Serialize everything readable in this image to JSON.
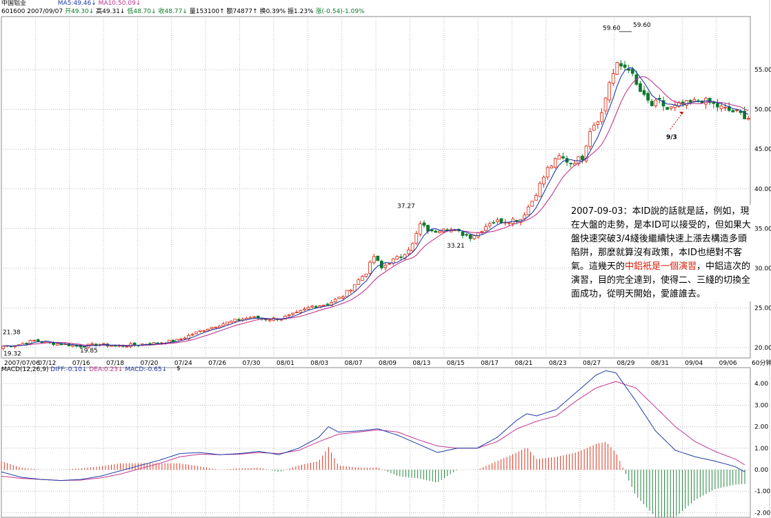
{
  "header": {
    "name": "中国铝业",
    "code": "601600",
    "date": "2007/09/07",
    "ma5": "MA5:49.46↓",
    "ma10": "MA10:50.09↓",
    "open": "开49.30↓",
    "high": "高49.31↓",
    "low": "低48.70↓",
    "close": "收48.77↓",
    "volume": "量153100↑",
    "amount": "额74877↑",
    "turnover": "换0.39%",
    "amplitude": "振1.23%",
    "change": "涨(-0.54)-1.09%"
  },
  "annotation": {
    "p1": "2007-09-03：本ID說的話就是話，例如，現在大盤的走勢，是本ID可以接受的，但如果大盤快速突破3/4綫後繼續快速上漲去構造多頭陷阱，那麼就算沒有政策，本ID也絕對不客氣。這幾天的",
    "hl": "中鋁衹是一個演習",
    "p2": "，中鋁這次的演習，目的完全達到，使得二、三綫的切換全面成功，從明天開始，愛誰誰去。"
  },
  "macd_header": {
    "label": "MACD(12,26,9)",
    "diff": "DIFF:-0.10↓",
    "dea": "DEA:0.23↓",
    "macd": "MACD:-0.65↓"
  },
  "price_labels": {
    "low_start": "19.32",
    "high_start": "21.38",
    "low_0716": "19.85",
    "high_0808": "37.27",
    "low_0815": "33.21",
    "peak_label1": "59.60",
    "peak_label2": "59.60",
    "arrow_label": "9/3",
    "dollar": "$",
    "period": "60分钟"
  },
  "colors": {
    "up": "#d81e06",
    "down": "#0a7a2a",
    "ma5": "#1f3aa6",
    "ma10": "#c0368f",
    "grid": "#b8b8b8"
  },
  "chart_data": [
    {
      "type": "candlestick",
      "title": "",
      "x_tick_labels": [
        "2007/07/06",
        "07/12",
        "07/16",
        "07/18",
        "07/20",
        "07/24",
        "07/26",
        "07/30",
        "08/01",
        "08/03",
        "08/07",
        "08/09",
        "08/13",
        "08/15",
        "08/17",
        "08/21",
        "08/23",
        "08/27",
        "08/29",
        "08/31",
        "09/04",
        "09/06"
      ],
      "y_tick_labels": [
        "20.00",
        "25.00",
        "30.00",
        "35.00",
        "40.00",
        "45.00",
        "50.00",
        "55.00"
      ],
      "ylim": [
        18.7,
        61.7
      ],
      "close_path": [
        [
          0,
          20.2
        ],
        [
          4,
          20.4
        ],
        [
          8,
          20.9
        ],
        [
          12,
          20.6
        ],
        [
          16,
          20.4
        ],
        [
          20,
          20.2
        ],
        [
          25,
          20.4
        ],
        [
          30,
          20.2
        ],
        [
          35,
          20.4
        ],
        [
          40,
          20.6
        ],
        [
          45,
          20.9
        ],
        [
          48,
          21.5
        ],
        [
          52,
          22.3
        ],
        [
          56,
          22.9
        ],
        [
          60,
          23.4
        ],
        [
          64,
          23.8
        ],
        [
          68,
          23.6
        ],
        [
          72,
          23.7
        ],
        [
          76,
          24.3
        ],
        [
          80,
          25.2
        ],
        [
          84,
          25.5
        ],
        [
          88,
          26.5
        ],
        [
          92,
          28.5
        ],
        [
          94,
          29.5
        ],
        [
          96,
          31.5
        ],
        [
          98,
          30.0
        ],
        [
          100,
          30.8
        ],
        [
          103,
          31.5
        ],
        [
          106,
          33.0
        ],
        [
          108,
          35.5
        ],
        [
          111,
          34.5
        ],
        [
          114,
          35.2
        ],
        [
          118,
          34.5
        ],
        [
          121,
          34.0
        ],
        [
          123,
          34.5
        ],
        [
          126,
          35.8
        ],
        [
          130,
          36.0
        ],
        [
          134,
          36.2
        ],
        [
          137,
          38.5
        ],
        [
          139,
          40.5
        ],
        [
          141,
          42.5
        ],
        [
          144,
          44.0
        ],
        [
          147,
          43.3
        ],
        [
          150,
          44.0
        ],
        [
          152,
          47.5
        ],
        [
          155,
          49.5
        ],
        [
          157,
          53.5
        ],
        [
          159,
          55.5
        ],
        [
          162,
          55.3
        ],
        [
          164,
          53.0
        ],
        [
          166,
          51.5
        ],
        [
          168,
          50.5
        ],
        [
          170,
          51.0
        ],
        [
          172,
          50.0
        ],
        [
          175,
          50.5
        ],
        [
          178,
          50.8
        ],
        [
          181,
          51.2
        ],
        [
          184,
          50.6
        ],
        [
          187,
          50.0
        ],
        [
          190,
          49.6
        ],
        [
          193,
          49.0
        ]
      ],
      "n_bars": 194,
      "annotations": [
        "19.32",
        "21.38",
        "19.85",
        "37.27",
        "33.21",
        "59.60",
        "59.60",
        "9/3"
      ],
      "lines": [
        "MA5",
        "MA10"
      ]
    },
    {
      "type": "bar+line",
      "title": "",
      "y_tick_labels": [
        "4.00",
        "3.00",
        "2.00",
        "1.00",
        "0.00",
        "-1.00",
        "-2.00"
      ],
      "ylim": [
        -2.05,
        4.55
      ],
      "diff": [
        [
          0,
          -0.1
        ],
        [
          10,
          -0.35
        ],
        [
          20,
          -0.45
        ],
        [
          30,
          -0.5
        ],
        [
          40,
          -0.45
        ],
        [
          50,
          -0.3
        ],
        [
          60,
          -0.05
        ],
        [
          70,
          0.2
        ],
        [
          80,
          0.45
        ],
        [
          90,
          0.75
        ],
        [
          100,
          0.8
        ],
        [
          110,
          0.7
        ],
        [
          120,
          0.75
        ],
        [
          130,
          0.85
        ],
        [
          140,
          0.7
        ],
        [
          150,
          1.0
        ],
        [
          160,
          1.5
        ],
        [
          165,
          2.0
        ],
        [
          170,
          1.75
        ],
        [
          180,
          1.8
        ],
        [
          190,
          1.9
        ],
        [
          200,
          1.6
        ],
        [
          210,
          1.2
        ],
        [
          220,
          0.8
        ],
        [
          230,
          1.0
        ],
        [
          240,
          1.0
        ],
        [
          250,
          1.5
        ],
        [
          260,
          2.3
        ],
        [
          265,
          2.6
        ],
        [
          270,
          2.5
        ],
        [
          280,
          2.8
        ],
        [
          290,
          3.6
        ],
        [
          300,
          4.4
        ],
        [
          305,
          4.6
        ],
        [
          310,
          4.5
        ],
        [
          320,
          3.2
        ],
        [
          330,
          1.8
        ],
        [
          340,
          0.9
        ],
        [
          350,
          0.6
        ],
        [
          360,
          0.4
        ],
        [
          370,
          0.15
        ],
        [
          375,
          -0.1
        ]
      ],
      "dea": [
        [
          0,
          -0.3
        ],
        [
          10,
          -0.4
        ],
        [
          20,
          -0.45
        ],
        [
          30,
          -0.5
        ],
        [
          40,
          -0.48
        ],
        [
          50,
          -0.38
        ],
        [
          60,
          -0.2
        ],
        [
          70,
          0.05
        ],
        [
          80,
          0.3
        ],
        [
          90,
          0.6
        ],
        [
          100,
          0.72
        ],
        [
          110,
          0.7
        ],
        [
          120,
          0.72
        ],
        [
          130,
          0.8
        ],
        [
          140,
          0.75
        ],
        [
          150,
          0.9
        ],
        [
          160,
          1.3
        ],
        [
          170,
          1.65
        ],
        [
          180,
          1.75
        ],
        [
          190,
          1.85
        ],
        [
          200,
          1.75
        ],
        [
          210,
          1.4
        ],
        [
          220,
          1.1
        ],
        [
          230,
          1.0
        ],
        [
          240,
          1.0
        ],
        [
          250,
          1.3
        ],
        [
          260,
          1.9
        ],
        [
          270,
          2.25
        ],
        [
          280,
          2.5
        ],
        [
          290,
          3.2
        ],
        [
          300,
          3.8
        ],
        [
          310,
          4.1
        ],
        [
          320,
          3.8
        ],
        [
          330,
          2.9
        ],
        [
          340,
          2.0
        ],
        [
          350,
          1.3
        ],
        [
          360,
          0.85
        ],
        [
          370,
          0.5
        ],
        [
          375,
          0.23
        ]
      ],
      "x_range": [
        0,
        375
      ]
    }
  ]
}
